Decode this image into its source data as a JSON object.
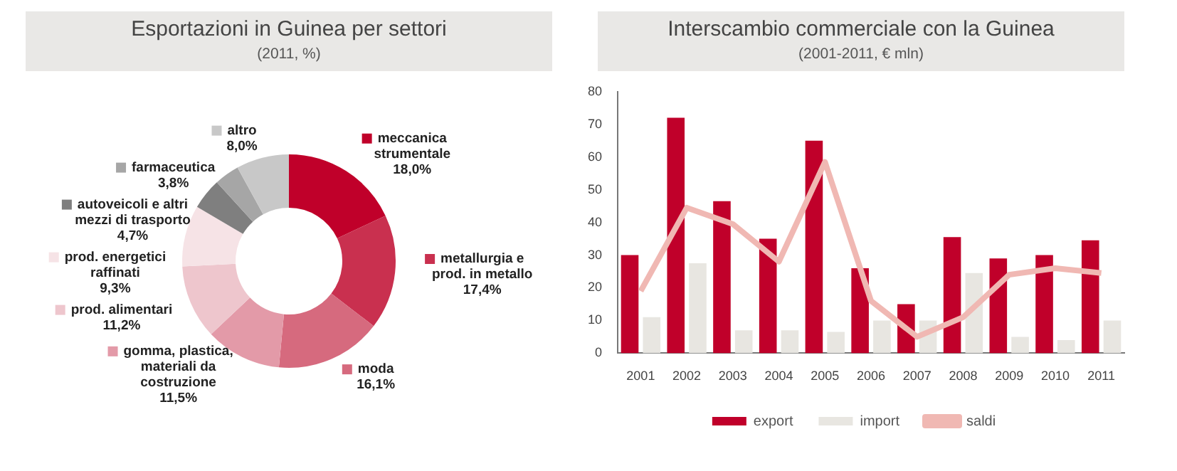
{
  "chart_data": [
    {
      "type": "donut",
      "title": "Esportazioni in Guinea per settori",
      "subtitle": "(2011, %)",
      "categories": [
        "meccanica strumentale",
        "metallurgia e prod. in metallo",
        "moda",
        "gomma, plastica, materiali da costruzione",
        "prod. alimentari",
        "prod. energetici raffinati",
        "autoveicoli e altri mezzi di trasporto",
        "farmaceutica",
        "altro"
      ],
      "values": [
        18.0,
        17.4,
        16.1,
        11.5,
        11.2,
        9.3,
        4.7,
        3.8,
        8.0
      ],
      "value_labels": [
        "18,0%",
        "17,4%",
        "16,1%",
        "11,5%",
        "11,2%",
        "9,3%",
        "4,7%",
        "3,8%",
        "8,0%"
      ],
      "colors": [
        "#c0002a",
        "#c9304f",
        "#d66a7e",
        "#e39aa8",
        "#eec6cd",
        "#f6e3e6",
        "#7f7f7f",
        "#a6a6a6",
        "#c8c8c8"
      ],
      "legend": "left"
    },
    {
      "type": "bar",
      "title": "Interscambio commerciale con la Guinea",
      "subtitle": "(2001-2011, € mln)",
      "categories": [
        "2001",
        "2002",
        "2003",
        "2004",
        "2005",
        "2006",
        "2007",
        "2008",
        "2009",
        "2010",
        "2011"
      ],
      "series": [
        {
          "name": "export",
          "color": "#c0002a",
          "values": [
            30,
            72,
            46.5,
            35,
            65,
            26,
            15,
            35.5,
            29,
            30,
            34.5
          ]
        },
        {
          "name": "import",
          "color": "#e8e6e1",
          "values": [
            11,
            27.5,
            7,
            7,
            6.5,
            10,
            10,
            24.5,
            5,
            4,
            10
          ]
        },
        {
          "name": "saldi",
          "type": "line",
          "color": "#f0b8b3",
          "values": [
            19,
            44.5,
            39.5,
            28,
            58.5,
            16,
            5,
            11,
            24,
            26,
            24.5
          ]
        }
      ],
      "ylim": [
        0,
        80
      ],
      "yticks": [
        0,
        10,
        20,
        30,
        40,
        50,
        60,
        70,
        80
      ],
      "grid": false,
      "legend": "bottom",
      "marker": "none",
      "line_style": "solid"
    }
  ]
}
